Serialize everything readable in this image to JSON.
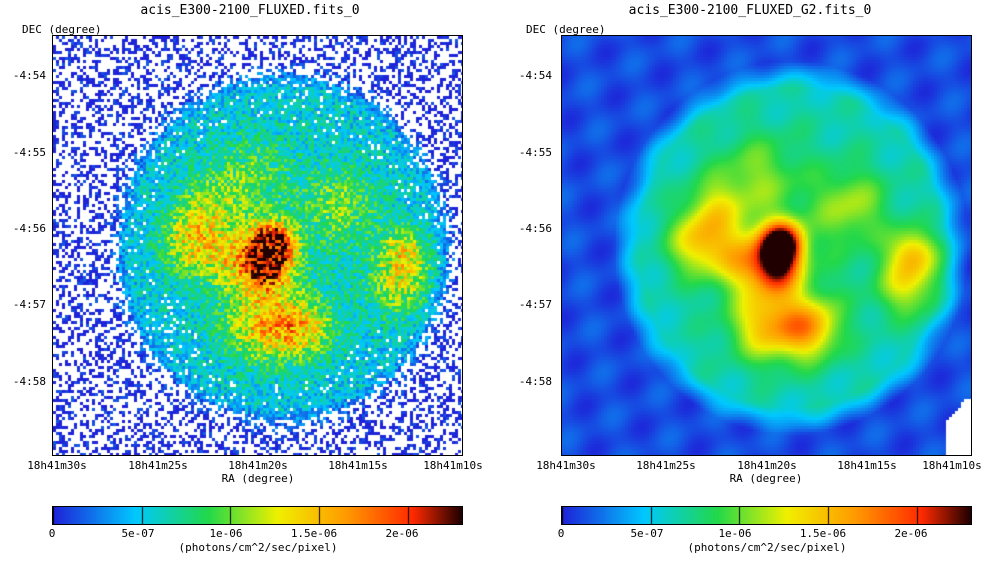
{
  "colors": {
    "low": "#1e22d8",
    "mid_low": "#00c8ff",
    "mid": "#22d84a",
    "mid_high": "#f0f000",
    "high": "#ff9900",
    "peak": "#ff2a00",
    "max": "#200000"
  },
  "panels": [
    {
      "title": "acis_E300-2100_FLUXED.fits_0",
      "style": "raw-noisy",
      "dec_axis_label": "DEC (degree)",
      "ra_axis_label": "RA (degree)",
      "dec_ticks": [
        "-4:54",
        "-4:55",
        "-4:56",
        "-4:57",
        "-4:58"
      ],
      "ra_ticks": [
        "18h41m30s",
        "18h41m25s",
        "18h41m20s",
        "18h41m15s",
        "18h41m10s"
      ],
      "colorbar_ticks": [
        "0",
        "5e-07",
        "1e-06",
        "1.5e-06",
        "2e-06"
      ],
      "colorbar_label": "(photons/cm^2/sec/pixel)"
    },
    {
      "title": "acis_E300-2100_FLUXED_G2.fits_0",
      "style": "smoothed",
      "dec_axis_label": "DEC (degree)",
      "ra_axis_label": "RA (degree)",
      "dec_ticks": [
        "-4:54",
        "-4:55",
        "-4:56",
        "-4:57",
        "-4:58"
      ],
      "ra_ticks": [
        "18h41m30s",
        "18h41m25s",
        "18h41m20s",
        "18h41m15s",
        "18h41m10s"
      ],
      "colorbar_ticks": [
        "0",
        "5e-07",
        "1e-06",
        "1.5e-06",
        "2e-06"
      ],
      "colorbar_label": "(photons/cm^2/sec/pixel)"
    }
  ],
  "chart_data": [
    {
      "type": "heatmap",
      "title": "acis_E300-2100_FLUXED.fits_0",
      "xlabel": "RA (degree)",
      "ylabel": "DEC (degree)",
      "x_ticks": [
        "18h41m30s",
        "18h41m25s",
        "18h41m20s",
        "18h41m15s",
        "18h41m10s"
      ],
      "y_ticks": [
        "-4:54",
        "-4:55",
        "-4:56",
        "-4:57",
        "-4:58"
      ],
      "colorbar": {
        "min": 0,
        "max": 2.3e-06,
        "ticks": [
          0,
          5e-07,
          1e-06,
          1.5e-06,
          2e-06
        ],
        "label": "(photons/cm^2/sec/pixel)"
      }
    },
    {
      "type": "heatmap",
      "title": "acis_E300-2100_FLUXED_G2.fits_0",
      "xlabel": "RA (degree)",
      "ylabel": "DEC (degree)",
      "x_ticks": [
        "18h41m30s",
        "18h41m25s",
        "18h41m20s",
        "18h41m15s",
        "18h41m10s"
      ],
      "y_ticks": [
        "-4:54",
        "-4:55",
        "-4:56",
        "-4:57",
        "-4:58"
      ],
      "colorbar": {
        "min": 0,
        "max": 2.3e-06,
        "ticks": [
          0,
          5e-07,
          1e-06,
          1.5e-06,
          2e-06
        ],
        "label": "(photons/cm^2/sec/pixel)"
      }
    }
  ]
}
